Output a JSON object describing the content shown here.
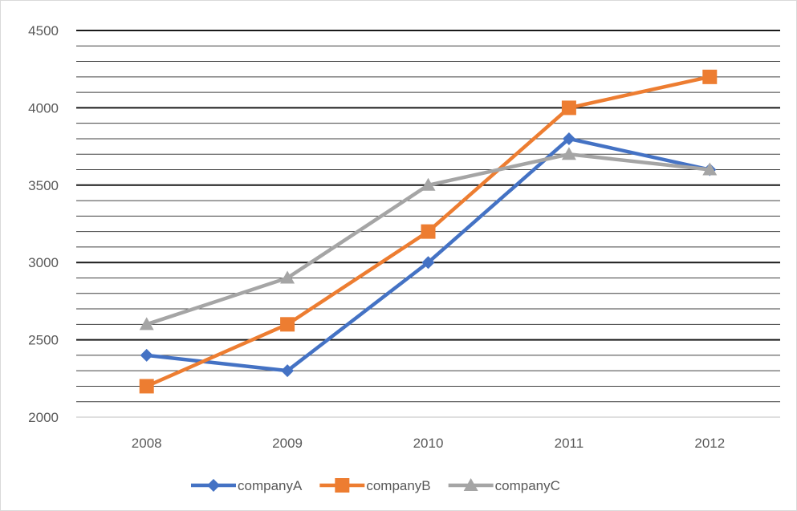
{
  "chart_data": {
    "type": "line",
    "title": "",
    "xlabel": "",
    "ylabel": "",
    "categories": [
      "2008",
      "2009",
      "2010",
      "2011",
      "2012"
    ],
    "ylim": [
      2000,
      4500
    ],
    "major_unit": 500,
    "minor_unit": 100,
    "yticks": [
      "2000",
      "2500",
      "3000",
      "3500",
      "4000",
      "4500"
    ],
    "grid": true,
    "legend": "bottom",
    "series": [
      {
        "name": "companyA",
        "values": [
          2400,
          2300,
          3000,
          3800,
          3600
        ],
        "color": "#4472c4",
        "marker": "diamond"
      },
      {
        "name": "companyB",
        "values": [
          2200,
          2600,
          3200,
          4000,
          4200
        ],
        "color": "#ed7d31",
        "marker": "square"
      },
      {
        "name": "companyC",
        "values": [
          2600,
          2900,
          3500,
          3700,
          3600
        ],
        "color": "#a5a5a5",
        "marker": "triangle"
      }
    ]
  }
}
